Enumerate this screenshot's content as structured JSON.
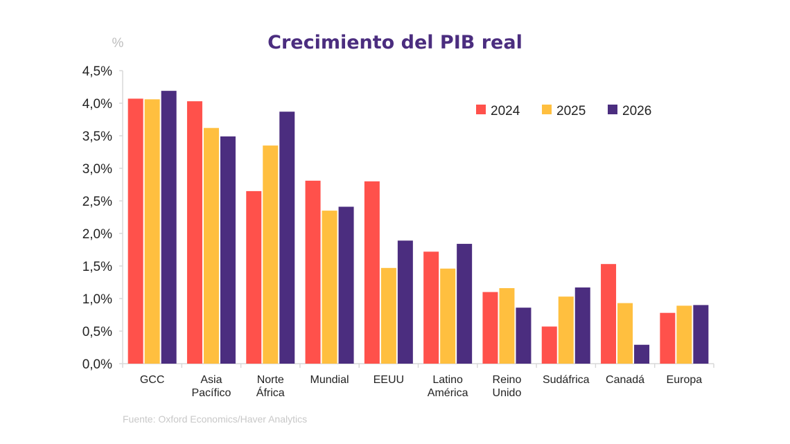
{
  "chart_data": {
    "type": "bar",
    "title": "Crecimiento del PIB real",
    "ylabel": "%",
    "xlabel": "",
    "ylim": [
      0,
      4.5
    ],
    "yticks": [
      "0,0%",
      "0,5%",
      "1,0%",
      "1,5%",
      "2,0%",
      "2,5%",
      "3,0%",
      "3,5%",
      "4,0%",
      "4,5%"
    ],
    "grid": false,
    "legend_position": "top-right",
    "categories": [
      [
        "GCC"
      ],
      [
        "Asia",
        "Pacífico"
      ],
      [
        "Norte",
        "África"
      ],
      [
        "Mundial"
      ],
      [
        "EEUU"
      ],
      [
        "Latino",
        "América"
      ],
      [
        "Reino",
        "Unido"
      ],
      [
        "Sudáfrica"
      ],
      [
        "Canadá"
      ],
      [
        "Europa"
      ]
    ],
    "series": [
      {
        "name": "2024",
        "color": "#ff514b",
        "values": [
          4.07,
          4.03,
          2.65,
          2.81,
          2.8,
          1.72,
          1.1,
          0.57,
          1.53,
          0.78
        ]
      },
      {
        "name": "2025",
        "color": "#ffbf3f",
        "values": [
          4.06,
          3.62,
          3.35,
          2.35,
          1.47,
          1.46,
          1.16,
          1.03,
          0.93,
          0.89
        ]
      },
      {
        "name": "2026",
        "color": "#4b2d7f",
        "values": [
          4.19,
          3.49,
          3.87,
          2.41,
          1.89,
          1.84,
          0.86,
          1.17,
          0.29,
          0.9
        ]
      }
    ],
    "source": "Fuente: Oxford Economics/Haver Analytics"
  }
}
